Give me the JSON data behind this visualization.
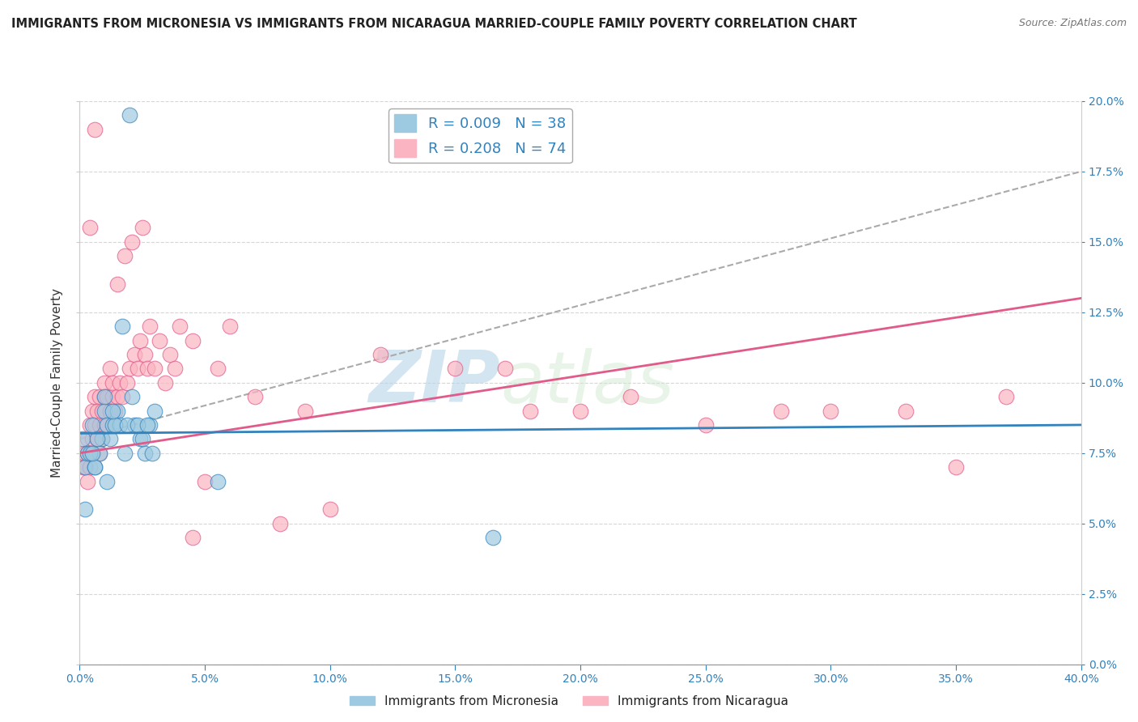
{
  "title": "IMMIGRANTS FROM MICRONESIA VS IMMIGRANTS FROM NICARAGUA MARRIED-COUPLE FAMILY POVERTY CORRELATION CHART",
  "source": "Source: ZipAtlas.com",
  "xlim": [
    0,
    40
  ],
  "ylim": [
    0,
    20
  ],
  "ylabel": "Married-Couple Family Poverty",
  "legend1_label": "R = 0.009   N = 38",
  "legend2_label": "R = 0.208   N = 74",
  "color_micronesia": "#9ecae1",
  "color_nicaragua": "#fbb4c1",
  "color_trend_micronesia": "#3182bd",
  "color_trend_nicaragua": "#e05a8a",
  "color_trend_gray": "#aaaaaa",
  "watermark_zip": "ZIP",
  "watermark_atlas": "atlas",
  "micronesia_x": [
    0.2,
    0.3,
    0.5,
    0.6,
    0.8,
    0.9,
    1.0,
    1.1,
    1.2,
    1.3,
    1.5,
    1.6,
    1.8,
    2.0,
    2.2,
    2.4,
    2.6,
    2.8,
    3.0,
    0.1,
    0.4,
    0.7,
    1.0,
    1.4,
    1.7,
    2.1,
    2.5,
    2.9,
    0.2,
    0.6,
    1.1,
    1.9,
    2.3,
    0.5,
    1.3,
    2.7,
    5.5,
    16.5
  ],
  "micronesia_y": [
    7.0,
    7.5,
    8.5,
    7.0,
    7.5,
    8.0,
    9.0,
    8.5,
    8.0,
    8.5,
    9.0,
    8.5,
    7.5,
    19.5,
    8.5,
    8.0,
    7.5,
    8.5,
    9.0,
    8.0,
    7.5,
    8.0,
    9.5,
    8.5,
    12.0,
    9.5,
    8.0,
    7.5,
    5.5,
    7.0,
    6.5,
    8.5,
    8.5,
    7.5,
    9.0,
    8.5,
    6.5,
    4.5
  ],
  "nicaragua_x": [
    0.1,
    0.2,
    0.2,
    0.3,
    0.3,
    0.3,
    0.4,
    0.4,
    0.5,
    0.5,
    0.5,
    0.6,
    0.6,
    0.7,
    0.7,
    0.8,
    0.8,
    0.8,
    0.9,
    0.9,
    1.0,
    1.0,
    1.0,
    1.1,
    1.1,
    1.2,
    1.2,
    1.3,
    1.3,
    1.4,
    1.5,
    1.5,
    1.6,
    1.7,
    1.8,
    1.9,
    2.0,
    2.1,
    2.2,
    2.3,
    2.4,
    2.5,
    2.6,
    2.7,
    2.8,
    3.0,
    3.2,
    3.4,
    3.6,
    3.8,
    4.0,
    4.5,
    5.0,
    5.5,
    6.0,
    7.0,
    8.0,
    9.0,
    10.0,
    12.0,
    15.0,
    17.0,
    18.0,
    20.0,
    22.0,
    25.0,
    28.0,
    30.0,
    33.0,
    35.0,
    37.0,
    4.5,
    0.4,
    0.6
  ],
  "nicaragua_y": [
    7.0,
    7.0,
    7.5,
    6.5,
    7.5,
    8.0,
    7.0,
    8.5,
    7.5,
    8.0,
    9.0,
    8.5,
    9.5,
    8.0,
    9.0,
    7.5,
    8.5,
    9.5,
    8.0,
    9.0,
    8.5,
    9.5,
    10.0,
    8.5,
    9.5,
    9.0,
    10.5,
    9.5,
    10.0,
    9.0,
    9.5,
    13.5,
    10.0,
    9.5,
    14.5,
    10.0,
    10.5,
    15.0,
    11.0,
    10.5,
    11.5,
    15.5,
    11.0,
    10.5,
    12.0,
    10.5,
    11.5,
    10.0,
    11.0,
    10.5,
    12.0,
    11.5,
    6.5,
    10.5,
    12.0,
    9.5,
    5.0,
    9.0,
    5.5,
    11.0,
    10.5,
    10.5,
    9.0,
    9.0,
    9.5,
    8.5,
    9.0,
    9.0,
    9.0,
    7.0,
    9.5,
    4.5,
    15.5,
    19.0
  ],
  "trend_mic_x0": 0,
  "trend_mic_x1": 40,
  "trend_mic_y0": 8.2,
  "trend_mic_y1": 8.5,
  "trend_nic_x0": 0,
  "trend_nic_x1": 40,
  "trend_nic_y0": 7.5,
  "trend_nic_y1": 13.0,
  "trend_gray_x0": 0,
  "trend_gray_x1": 40,
  "trend_gray_y0": 8.0,
  "trend_gray_y1": 17.5
}
